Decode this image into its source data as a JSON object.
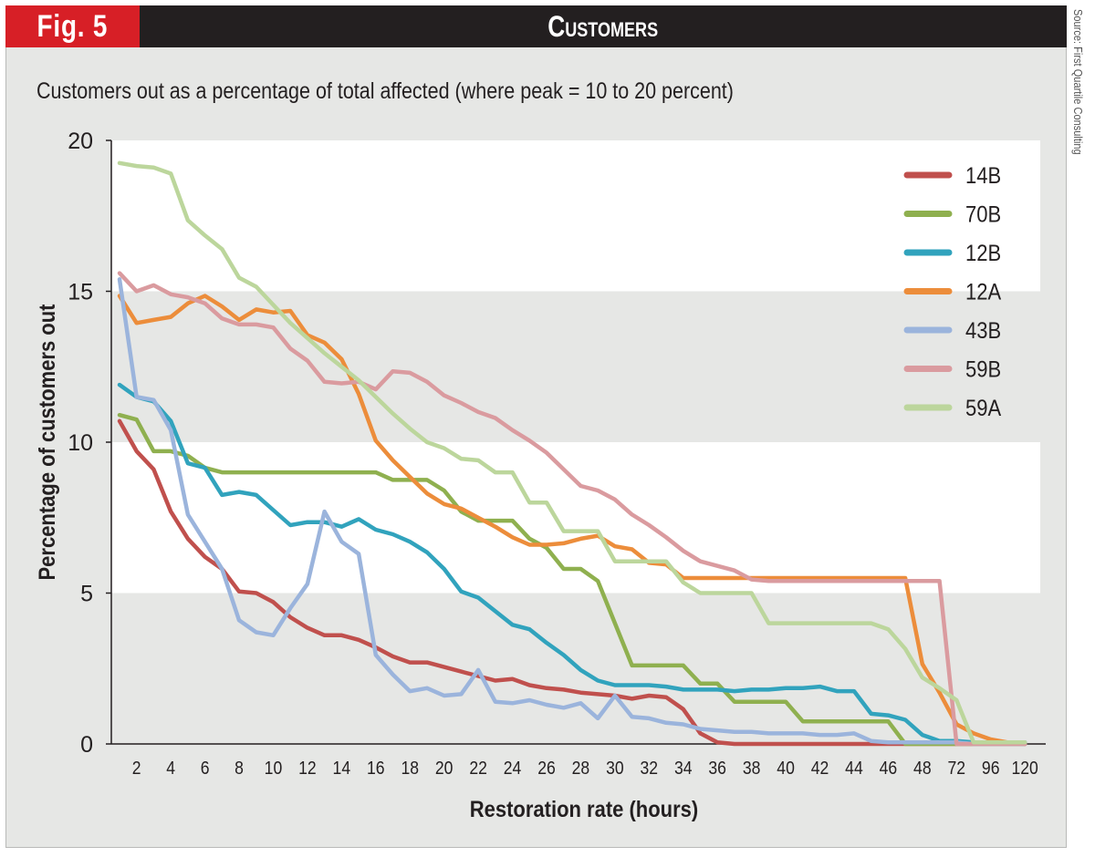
{
  "header": {
    "figure_label": "Fig. 5",
    "title": "Customers",
    "source": "Source: First Quartile Consulting"
  },
  "colors": {
    "fig_tab": "#d71f26",
    "header_bar": "#231f20",
    "band_light": "#ffffff",
    "band_gray": "#e6e7e5"
  },
  "chart_data": {
    "type": "line",
    "title": "Customers",
    "subtitle": "Customers out as a percentage of total affected (where peak = 10 to 20 percent)",
    "xlabel": "Restoration rate (hours)",
    "ylabel": "Percentage of customers out",
    "ylim": [
      0,
      20
    ],
    "yticks": [
      0,
      5,
      10,
      15,
      20
    ],
    "grid": "alternating horizontal bands (white 5-10 and 15-20, gray 0-5 and 10-15)",
    "legend_position": "top-right",
    "x": [
      1,
      2,
      3,
      4,
      5,
      6,
      7,
      8,
      9,
      10,
      11,
      12,
      13,
      14,
      15,
      16,
      17,
      18,
      19,
      20,
      21,
      22,
      23,
      24,
      25,
      26,
      27,
      28,
      29,
      30,
      31,
      32,
      33,
      34,
      35,
      36,
      37,
      38,
      39,
      40,
      41,
      42,
      43,
      44,
      45,
      46,
      47,
      48,
      60,
      72,
      84,
      96,
      108,
      120
    ],
    "xtick_labels": [
      "2",
      "4",
      "6",
      "8",
      "10",
      "12",
      "14",
      "16",
      "18",
      "20",
      "22",
      "24",
      "26",
      "28",
      "30",
      "32",
      "34",
      "36",
      "38",
      "40",
      "42",
      "44",
      "46",
      "48",
      "72",
      "96",
      "120"
    ],
    "series": [
      {
        "name": "14B",
        "color": "#c0504d",
        "values": [
          10.7,
          9.7,
          9.1,
          7.7,
          6.8,
          6.2,
          5.8,
          5.05,
          5.0,
          4.7,
          4.2,
          3.85,
          3.6,
          3.6,
          3.45,
          3.2,
          2.9,
          2.7,
          2.7,
          2.55,
          2.4,
          2.25,
          2.1,
          2.15,
          1.95,
          1.85,
          1.8,
          1.7,
          1.65,
          1.6,
          1.5,
          1.6,
          1.55,
          1.15,
          0.35,
          0.05,
          0,
          0,
          0,
          0,
          0,
          0,
          0,
          0,
          0,
          0,
          0,
          0,
          0,
          0,
          0,
          0,
          0,
          0
        ]
      },
      {
        "name": "70B",
        "color": "#8fb04f",
        "values": [
          10.9,
          10.75,
          9.7,
          9.7,
          9.55,
          9.15,
          9.0,
          9.0,
          9.0,
          9.0,
          9.0,
          9.0,
          9.0,
          9.0,
          9.0,
          9.0,
          8.75,
          8.75,
          8.75,
          8.4,
          7.7,
          7.4,
          7.4,
          7.4,
          6.8,
          6.5,
          5.8,
          5.8,
          5.4,
          4.0,
          2.6,
          2.6,
          2.6,
          2.6,
          2.0,
          2.0,
          1.4,
          1.4,
          1.4,
          1.4,
          0.75,
          0.75,
          0.75,
          0.75,
          0.75,
          0.75,
          0,
          0,
          0,
          0,
          0,
          0,
          0,
          0
        ]
      },
      {
        "name": "12B",
        "color": "#31a3bd",
        "values": [
          11.9,
          11.5,
          11.35,
          10.7,
          9.3,
          9.15,
          8.25,
          8.35,
          8.25,
          7.75,
          7.25,
          7.35,
          7.35,
          7.2,
          7.45,
          7.1,
          6.95,
          6.7,
          6.35,
          5.8,
          5.05,
          4.85,
          4.4,
          3.95,
          3.8,
          3.35,
          2.95,
          2.45,
          2.1,
          1.95,
          1.95,
          1.95,
          1.9,
          1.8,
          1.8,
          1.8,
          1.75,
          1.8,
          1.8,
          1.85,
          1.85,
          1.9,
          1.75,
          1.75,
          1.0,
          0.95,
          0.8,
          0.3,
          0.1,
          0.1,
          0.05,
          0.05,
          0.05,
          0.05
        ]
      },
      {
        "name": "12A",
        "color": "#ec8d3b",
        "values": [
          14.85,
          13.95,
          14.05,
          14.15,
          14.6,
          14.85,
          14.5,
          14.05,
          14.4,
          14.3,
          14.35,
          13.55,
          13.3,
          12.75,
          11.6,
          10.05,
          9.4,
          8.85,
          8.3,
          7.95,
          7.8,
          7.5,
          7.2,
          6.85,
          6.6,
          6.6,
          6.65,
          6.8,
          6.9,
          6.55,
          6.45,
          6.0,
          5.95,
          5.5,
          5.5,
          5.5,
          5.5,
          5.5,
          5.5,
          5.5,
          5.5,
          5.5,
          5.5,
          5.5,
          5.5,
          5.5,
          5.5,
          2.65,
          1.7,
          0.65,
          0.35,
          0.15,
          0.05,
          0
        ]
      },
      {
        "name": "43B",
        "color": "#9bb4dc",
        "values": [
          15.4,
          11.5,
          11.4,
          10.4,
          7.6,
          6.7,
          5.8,
          4.1,
          3.7,
          3.6,
          4.5,
          5.3,
          7.7,
          6.7,
          6.3,
          2.95,
          2.3,
          1.75,
          1.85,
          1.6,
          1.65,
          2.45,
          1.4,
          1.35,
          1.45,
          1.3,
          1.2,
          1.35,
          0.85,
          1.6,
          0.9,
          0.85,
          0.7,
          0.65,
          0.5,
          0.45,
          0.4,
          0.4,
          0.35,
          0.35,
          0.35,
          0.3,
          0.3,
          0.35,
          0.1,
          0.05,
          0.05,
          0.05,
          0.05,
          0.05,
          0,
          0,
          0,
          0
        ]
      },
      {
        "name": "59B",
        "color": "#da9b9f",
        "values": [
          15.6,
          15.0,
          15.2,
          14.9,
          14.8,
          14.6,
          14.1,
          13.9,
          13.9,
          13.8,
          13.1,
          12.7,
          12.0,
          11.95,
          12.0,
          11.75,
          12.35,
          12.3,
          12.0,
          11.55,
          11.3,
          11.0,
          10.8,
          10.4,
          10.05,
          9.65,
          9.1,
          8.55,
          8.4,
          8.1,
          7.6,
          7.25,
          6.85,
          6.4,
          6.05,
          5.9,
          5.75,
          5.45,
          5.4,
          5.4,
          5.4,
          5.4,
          5.4,
          5.4,
          5.4,
          5.4,
          5.4,
          5.4,
          5.4,
          0,
          0,
          0,
          0,
          0
        ]
      },
      {
        "name": "59A",
        "color": "#bcd69c",
        "values": [
          19.25,
          19.15,
          19.1,
          18.9,
          17.35,
          16.85,
          16.4,
          15.45,
          15.15,
          14.55,
          13.95,
          13.45,
          12.95,
          12.5,
          12.05,
          11.5,
          10.95,
          10.45,
          10.0,
          9.8,
          9.45,
          9.4,
          9.0,
          9.0,
          8.0,
          8.0,
          7.05,
          7.05,
          7.05,
          6.05,
          6.05,
          6.05,
          6.05,
          5.35,
          5.0,
          5.0,
          5.0,
          5.0,
          4.0,
          4.0,
          4.0,
          4.0,
          4.0,
          4.0,
          4.0,
          3.8,
          3.15,
          2.2,
          1.85,
          1.45,
          0.05,
          0.05,
          0.05,
          0.05
        ]
      }
    ]
  }
}
